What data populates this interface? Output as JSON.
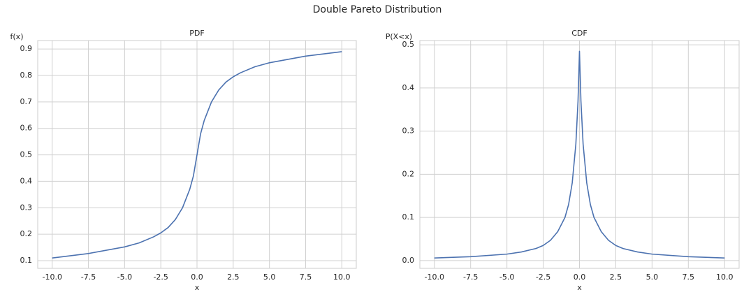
{
  "title": "Double Pareto Distribution",
  "chart_data": [
    {
      "type": "line",
      "title": "PDF",
      "xlabel": "x",
      "ylabel": "f(x)",
      "grid": true,
      "x": [
        -10,
        -7.5,
        -5,
        -4,
        -3,
        -2.5,
        -2,
        -1.5,
        -1,
        -0.5,
        -0.25,
        0,
        0.25,
        0.5,
        1,
        1.5,
        2,
        2.5,
        3,
        4,
        5,
        7.5,
        10
      ],
      "series": [
        {
          "color": "#4c72b0",
          "values": [
            0.11,
            0.127,
            0.152,
            0.167,
            0.19,
            0.205,
            0.225,
            0.255,
            0.3,
            0.37,
            0.42,
            0.5,
            0.58,
            0.63,
            0.7,
            0.745,
            0.775,
            0.795,
            0.81,
            0.833,
            0.848,
            0.873,
            0.89
          ]
        }
      ],
      "xlim": [
        -11,
        11
      ],
      "xticks": [
        {
          "value": -10,
          "label": "-10.0"
        },
        -7.5,
        {
          "value": -5,
          "label": "-5.0"
        },
        -2.5,
        {
          "value": 0,
          "label": "0.0"
        },
        2.5,
        {
          "value": 5,
          "label": "5.0"
        },
        7.5,
        {
          "value": 10,
          "label": "10.0"
        }
      ],
      "ylim": [
        0.071,
        0.932
      ],
      "yticks": [
        0.1,
        0.2,
        0.3,
        0.4,
        0.5,
        0.6,
        0.7,
        0.8,
        0.9
      ]
    },
    {
      "type": "line",
      "title": "CDF",
      "xlabel": "x",
      "ylabel": "P(X<x)",
      "grid": true,
      "x": [
        -10,
        -7.5,
        -5,
        -4,
        -3,
        -2.5,
        -2,
        -1.5,
        -1,
        -0.75,
        -0.5,
        -0.25,
        -0.1,
        0,
        0.1,
        0.25,
        0.5,
        0.75,
        1,
        1.5,
        2,
        2.5,
        3,
        4,
        5,
        7.5,
        10
      ],
      "series": [
        {
          "color": "#4c72b0",
          "values": [
            0.006,
            0.009,
            0.015,
            0.02,
            0.028,
            0.035,
            0.047,
            0.067,
            0.1,
            0.13,
            0.18,
            0.27,
            0.37,
            0.485,
            0.37,
            0.27,
            0.18,
            0.13,
            0.1,
            0.067,
            0.047,
            0.035,
            0.028,
            0.02,
            0.015,
            0.009,
            0.006
          ]
        }
      ],
      "xlim": [
        -11,
        11
      ],
      "xticks": [
        {
          "value": -10,
          "label": "-10.0"
        },
        -7.5,
        {
          "value": -5,
          "label": "-5.0"
        },
        -2.5,
        {
          "value": 0,
          "label": "0.0"
        },
        2.5,
        {
          "value": 5,
          "label": "5.0"
        },
        7.5,
        {
          "value": 10,
          "label": "10.0"
        }
      ],
      "ylim": [
        -0.018,
        0.51
      ],
      "yticks": [
        {
          "value": 0,
          "label": "0.0"
        },
        0.1,
        0.2,
        0.3,
        0.4,
        0.5
      ]
    }
  ]
}
